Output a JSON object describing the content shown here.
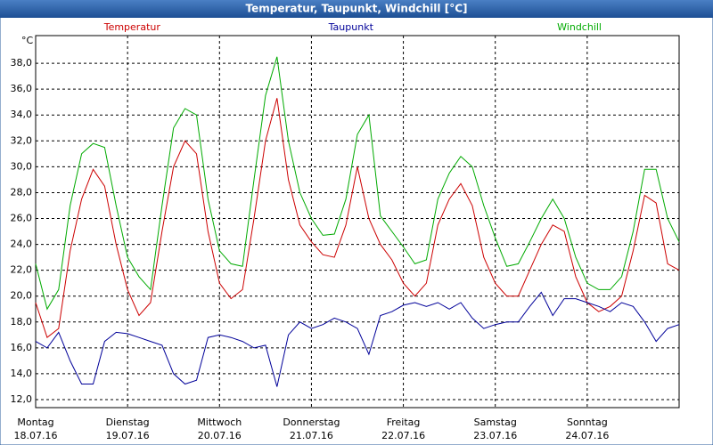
{
  "chart_data": {
    "type": "line",
    "title": "Temperatur, Taupunkt, Windchill [°C]",
    "unit": "°C",
    "x": [
      0,
      3,
      6,
      9,
      12,
      15,
      18,
      21,
      24,
      27,
      30,
      33,
      36,
      39,
      42,
      45,
      48,
      51,
      54,
      57,
      60,
      63,
      66,
      69,
      72,
      75,
      78,
      81,
      84,
      87,
      90,
      93,
      96,
      99,
      102,
      105,
      108,
      111,
      114,
      117,
      120,
      123,
      126,
      129,
      132,
      135,
      138,
      141,
      144,
      147,
      150,
      153,
      156,
      159,
      162,
      165,
      168
    ],
    "xlim": [
      0,
      168
    ],
    "xticks": [
      {
        "value": 0,
        "label": "Montag",
        "date": "18.07.16"
      },
      {
        "value": 24,
        "label": "Dienstag",
        "date": "19.07.16"
      },
      {
        "value": 48,
        "label": "Mittwoch",
        "date": "20.07.16"
      },
      {
        "value": 72,
        "label": "Donnerstag",
        "date": "21.07.16"
      },
      {
        "value": 96,
        "label": "Freitag",
        "date": "22.07.16"
      },
      {
        "value": 120,
        "label": "Samstag",
        "date": "23.07.16"
      },
      {
        "value": 144,
        "label": "Sonntag",
        "date": "24.07.16"
      }
    ],
    "ylim": [
      11.38,
      40.14
    ],
    "yticks": [
      {
        "value": 12,
        "label": "12,0"
      },
      {
        "value": 14,
        "label": "14,0"
      },
      {
        "value": 16,
        "label": "16,0"
      },
      {
        "value": 18,
        "label": "18,0"
      },
      {
        "value": 20,
        "label": "20,0"
      },
      {
        "value": 22,
        "label": "22,0"
      },
      {
        "value": 24,
        "label": "24,0"
      },
      {
        "value": 26,
        "label": "26,0"
      },
      {
        "value": 28,
        "label": "28,0"
      },
      {
        "value": 30,
        "label": "30,0"
      },
      {
        "value": 32,
        "label": "32,0"
      },
      {
        "value": 34,
        "label": "34,0"
      },
      {
        "value": 36,
        "label": "36,0"
      },
      {
        "value": 38,
        "label": "38,0"
      }
    ],
    "grid": true,
    "series": [
      {
        "name": "Temperatur",
        "color": "#cc0000",
        "values": [
          19.5,
          16.8,
          17.5,
          23.5,
          27.5,
          29.8,
          28.5,
          24,
          20.5,
          18.5,
          19.5,
          25,
          30,
          32,
          31,
          25,
          21,
          19.8,
          20.5,
          26,
          32,
          35.3,
          29,
          25.5,
          24.2,
          23.2,
          23,
          25.5,
          30,
          26,
          24,
          22.8,
          21,
          20,
          21,
          25.5,
          27.5,
          28.7,
          27,
          23,
          21,
          20,
          20,
          22,
          24,
          25.5,
          25,
          21.5,
          19.5,
          18.8,
          19.2,
          20,
          23.5,
          27.8,
          27.2,
          22.5,
          22
        ]
      },
      {
        "name": "Taupunkt",
        "color": "#000099",
        "values": [
          16.5,
          16,
          17.2,
          15,
          13.2,
          13.2,
          16.5,
          17.2,
          17.1,
          16.8,
          16.5,
          16.2,
          14,
          13.2,
          13.5,
          16.8,
          17,
          16.8,
          16.5,
          16,
          16.2,
          13,
          17,
          18,
          17.5,
          17.8,
          18.3,
          18,
          17.5,
          15.5,
          18.5,
          18.8,
          19.3,
          19.5,
          19.2,
          19.5,
          19,
          19.5,
          18.3,
          17.5,
          17.8,
          18,
          18,
          19.2,
          20.3,
          18.5,
          19.8,
          19.8,
          19.5,
          19.2,
          18.8,
          19.5,
          19.2,
          18,
          16.5,
          17.5,
          17.8
        ]
      },
      {
        "name": "Windchill",
        "color": "#00aa00",
        "values": [
          22.5,
          19,
          20.5,
          27,
          31,
          31.8,
          31.5,
          27,
          23,
          21.5,
          20.5,
          27,
          33,
          34.5,
          34,
          27.5,
          23.5,
          22.5,
          22.3,
          29,
          35.5,
          38.5,
          32,
          28,
          26,
          24.7,
          24.8,
          27.5,
          32.5,
          34,
          26.2,
          25,
          23.8,
          22.5,
          22.8,
          27.5,
          29.5,
          30.8,
          30,
          27,
          24.5,
          22.3,
          22.5,
          24.2,
          26,
          27.5,
          26,
          23,
          21,
          20.5,
          20.5,
          21.5,
          25,
          29.8,
          29.8,
          26,
          24.2
        ]
      }
    ]
  }
}
